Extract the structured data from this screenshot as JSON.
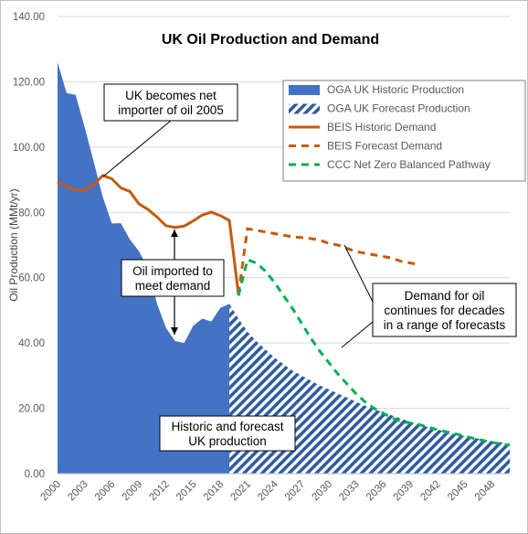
{
  "chart_data": {
    "type": "area",
    "title": "UK Oil Production and Demand",
    "ylabel": "Oil Production (MMt/yr)",
    "xlabel": "",
    "ylim": [
      0,
      140
    ],
    "xlim": [
      2000,
      2050
    ],
    "y_ticks": [
      "0.00",
      "20.00",
      "40.00",
      "60.00",
      "80.00",
      "100.00",
      "120.00",
      "140.00"
    ],
    "x_ticks": [
      "2000",
      "2003",
      "2006",
      "2009",
      "2012",
      "2015",
      "2018",
      "2021",
      "2024",
      "2027",
      "2030",
      "2033",
      "2036",
      "2039",
      "2042",
      "2045",
      "2048"
    ],
    "grid": "horizontal",
    "legend_position": "top-right",
    "series": [
      {
        "name": "OGA UK Historic Production",
        "style": "area-solid",
        "color": "#4472C4",
        "x": [
          2000,
          2001,
          2002,
          2003,
          2004,
          2005,
          2006,
          2007,
          2008,
          2009,
          2010,
          2011,
          2012,
          2013,
          2014,
          2015,
          2016,
          2017,
          2018,
          2019
        ],
        "values": [
          126.0,
          116.5,
          116.0,
          106.0,
          95.5,
          84.7,
          76.6,
          76.7,
          71.7,
          68.1,
          62.9,
          52.0,
          44.6,
          40.6,
          40.0,
          45.3,
          47.5,
          46.6,
          50.8,
          52.0
        ]
      },
      {
        "name": "OGA UK Forecast Production",
        "style": "area-hatched",
        "color": "#4472C4",
        "x": [
          2019,
          2020,
          2021,
          2022,
          2023,
          2024,
          2025,
          2026,
          2027,
          2028,
          2029,
          2030,
          2031,
          2032,
          2033,
          2034,
          2035,
          2036,
          2037,
          2038,
          2039,
          2040,
          2041,
          2042,
          2043,
          2044,
          2045,
          2046,
          2047,
          2048,
          2049,
          2050
        ],
        "values": [
          52.0,
          47.5,
          43.5,
          40.5,
          38.0,
          35.5,
          33.5,
          31.5,
          30.0,
          28.5,
          27.0,
          25.8,
          24.5,
          23.3,
          22.0,
          20.8,
          19.8,
          18.7,
          17.8,
          16.8,
          15.9,
          15.0,
          14.2,
          13.5,
          12.8,
          12.1,
          11.5,
          11.0,
          10.5,
          10.0,
          9.6,
          9.2
        ]
      },
      {
        "name": "BEIS Historic Demand",
        "style": "line-solid",
        "color": "#C55A11",
        "x": [
          2000,
          2001,
          2002,
          2003,
          2004,
          2005,
          2006,
          2007,
          2008,
          2009,
          2010,
          2011,
          2012,
          2013,
          2014,
          2015,
          2016,
          2017,
          2018,
          2019,
          2020
        ],
        "values": [
          89.3,
          87.9,
          86.8,
          86.8,
          88.5,
          91.3,
          90.3,
          87.5,
          86.4,
          82.6,
          80.9,
          78.6,
          75.9,
          75.4,
          75.8,
          77.4,
          79.2,
          80.1,
          79.0,
          77.5,
          55.0
        ]
      },
      {
        "name": "BEIS Forecast Demand",
        "style": "line-dashed",
        "color": "#C55A11",
        "x": [
          2020,
          2021,
          2022,
          2023,
          2024,
          2025,
          2026,
          2027,
          2028,
          2029,
          2030,
          2031,
          2032,
          2033,
          2034,
          2035,
          2036,
          2037,
          2038,
          2039,
          2040
        ],
        "values": [
          55.0,
          75.0,
          74.5,
          74.0,
          73.5,
          73.0,
          72.5,
          72.3,
          72.0,
          71.5,
          70.5,
          70.0,
          69.0,
          68.0,
          67.5,
          67.0,
          66.5,
          66.0,
          65.0,
          64.5,
          64.0
        ]
      },
      {
        "name": "CCC Net Zero Balanced Pathway",
        "style": "line-dashed",
        "color": "#00B050",
        "x": [
          2020,
          2021,
          2022,
          2023,
          2024,
          2025,
          2026,
          2027,
          2028,
          2029,
          2030,
          2031,
          2032,
          2033,
          2034,
          2035,
          2036,
          2037,
          2038,
          2039,
          2040,
          2041,
          2042,
          2043,
          2044,
          2045,
          2046,
          2047,
          2048,
          2049,
          2050
        ],
        "values": [
          54.5,
          65.5,
          64.5,
          62.0,
          58.5,
          54.5,
          50.5,
          46.0,
          41.5,
          37.5,
          34.0,
          30.5,
          27.5,
          24.5,
          22.0,
          20.0,
          18.5,
          17.0,
          16.0,
          15.5,
          15.0,
          14.2,
          13.5,
          12.8,
          12.2,
          11.5,
          10.8,
          10.2,
          9.6,
          9.1,
          8.7
        ]
      }
    ],
    "annotations": [
      {
        "id": "net-importer",
        "lines": [
          "UK becomes net",
          "importer of oil 2005"
        ]
      },
      {
        "id": "oil-imported",
        "lines": [
          "Oil imported to",
          "meet demand"
        ]
      },
      {
        "id": "demand-continues",
        "lines": [
          "Demand for oil",
          "continues for decades",
          "in a range of forecasts"
        ]
      },
      {
        "id": "historic-forecast",
        "lines": [
          "Historic and forecast",
          "UK production"
        ]
      }
    ]
  }
}
